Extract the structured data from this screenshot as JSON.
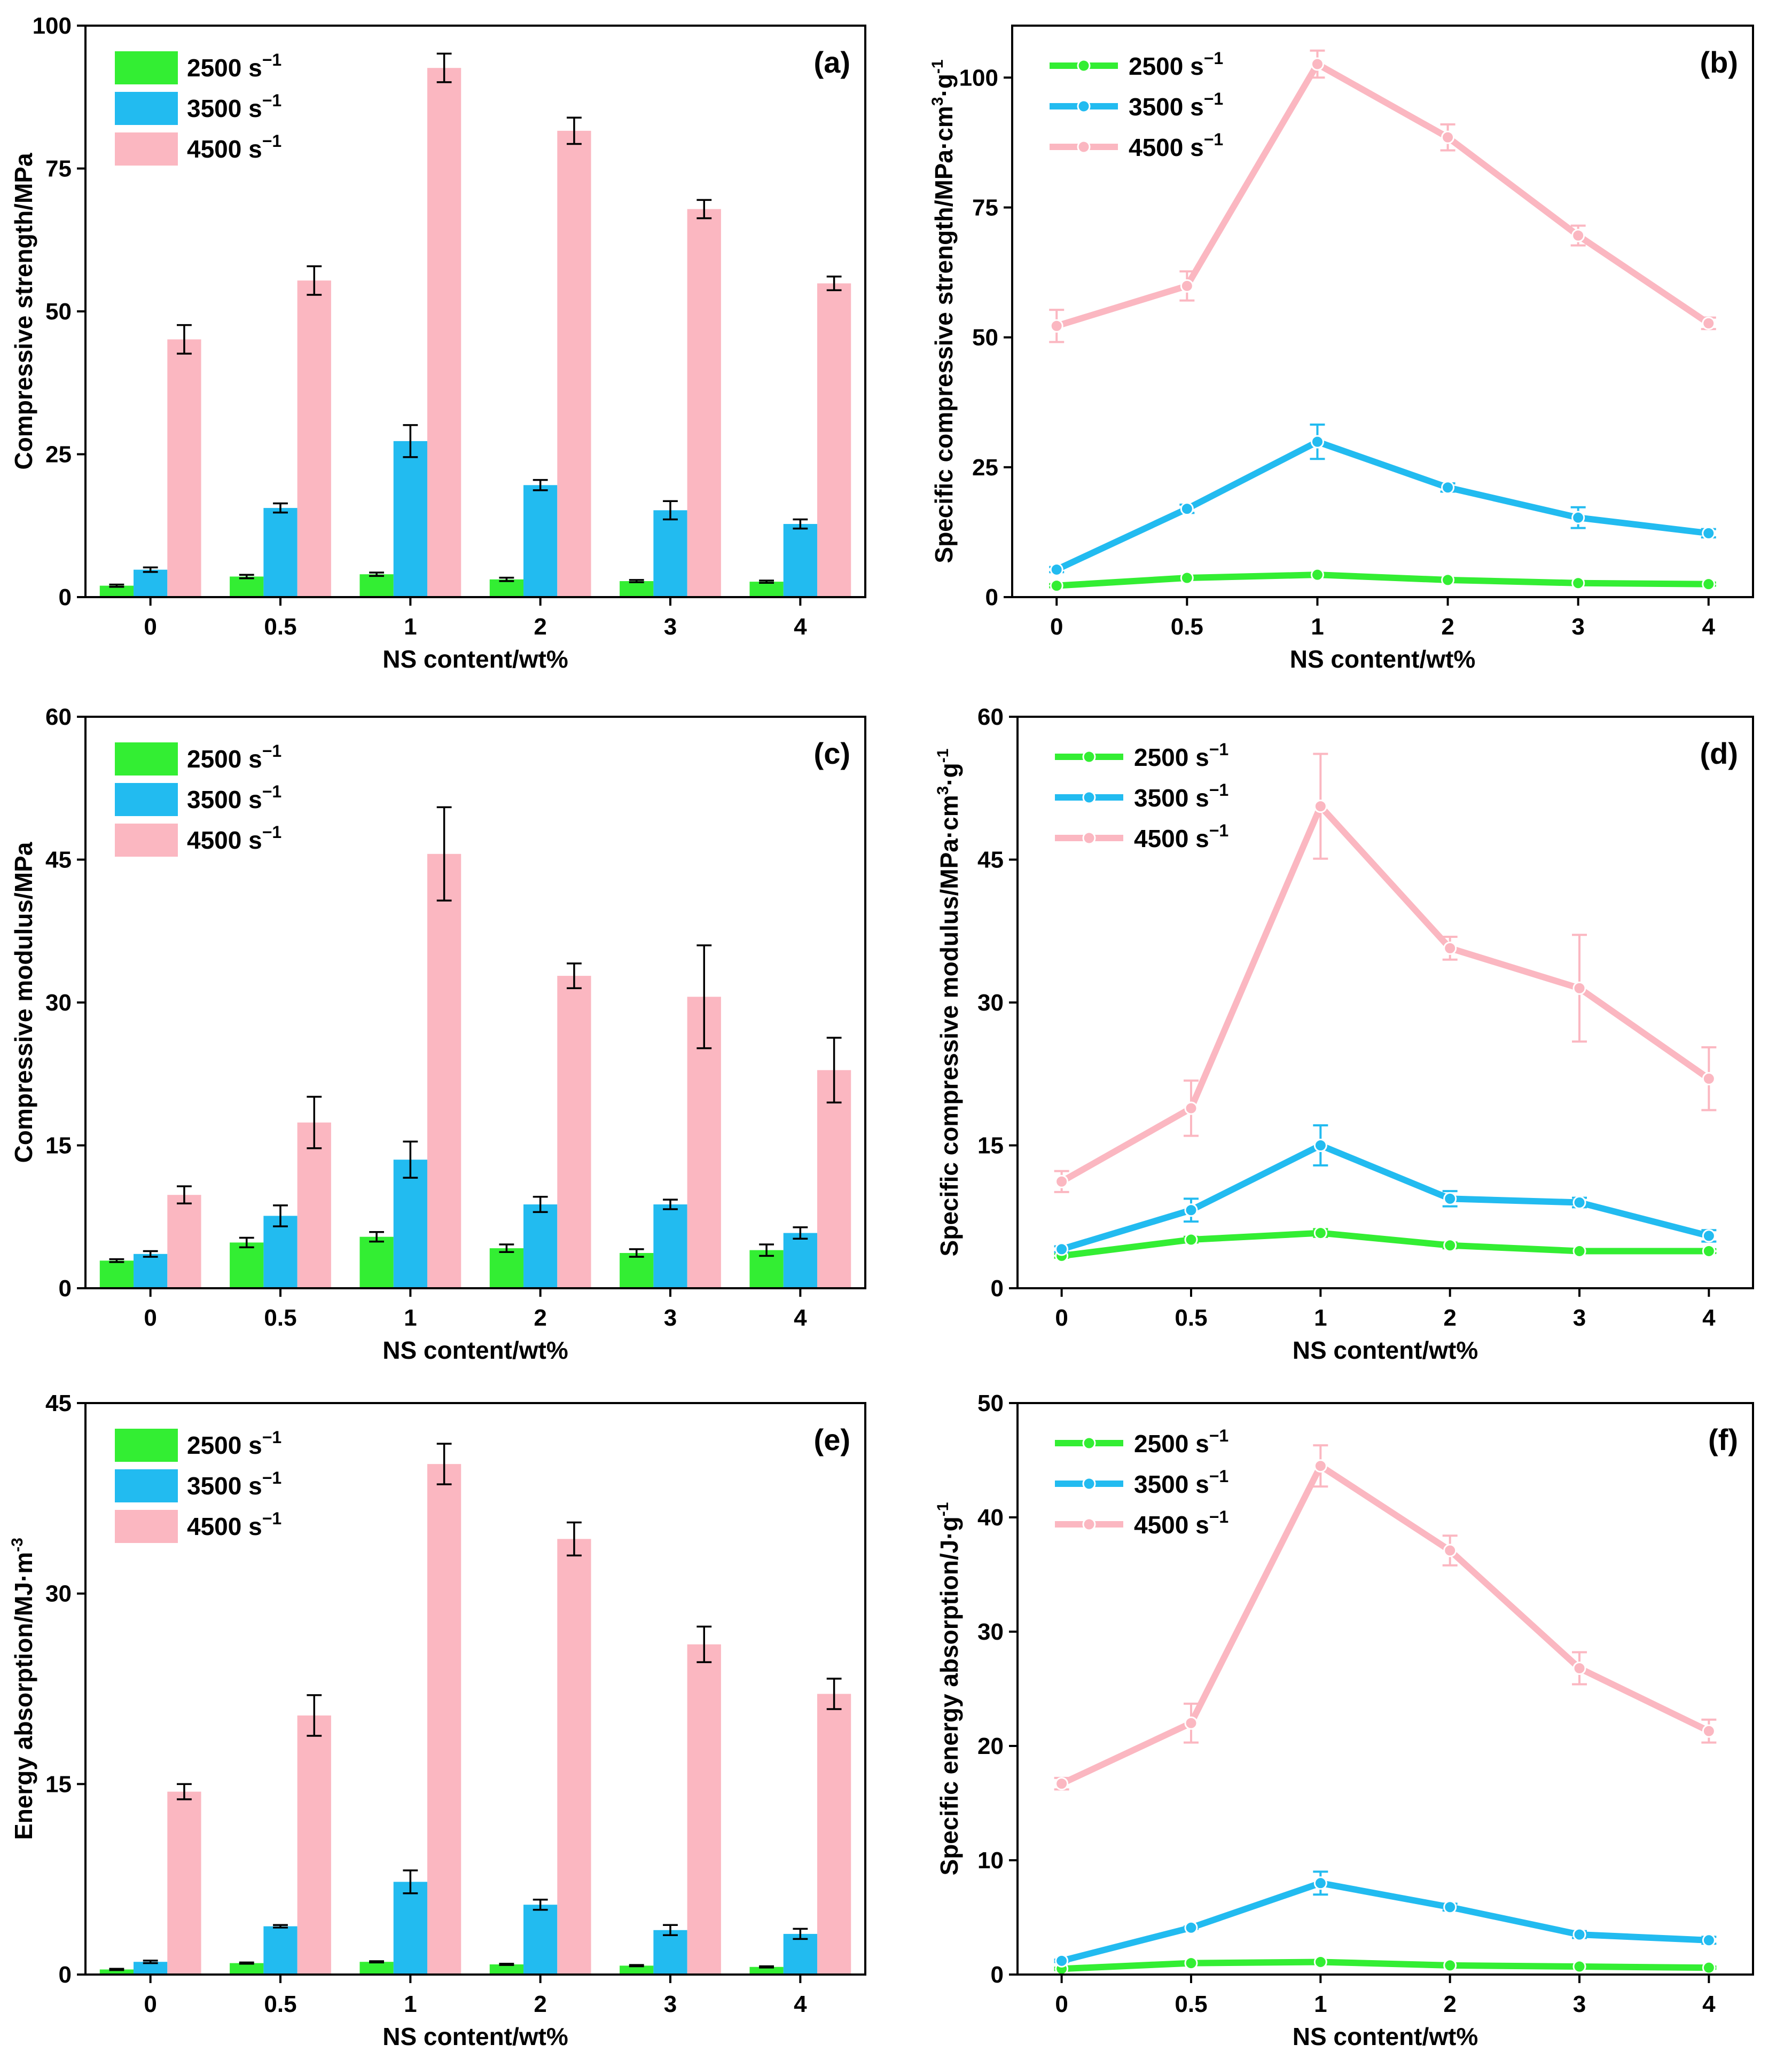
{
  "colors": {
    "rate_2500": "#33ee33",
    "rate_3500": "#22bbf0",
    "rate_4500": "#fbb7c1",
    "axis": "#000000"
  },
  "legend_labels": [
    "2500 s",
    "3500 s",
    "4500 s"
  ],
  "legend_superscript": "−1",
  "chart_data": [
    {
      "panel": "(a)",
      "type": "bar",
      "categories": [
        "0",
        "0.5",
        "1",
        "2",
        "3",
        "4"
      ],
      "xlabel": "NS content/wt%",
      "ylabel": "Compressive strength/MPa",
      "ylim": [
        0,
        100
      ],
      "yticks": [
        0,
        25,
        50,
        75,
        100
      ],
      "legend_position": "top-left",
      "series": [
        {
          "name": "2500 s−1",
          "values": [
            2.0,
            3.6,
            4.0,
            3.1,
            2.8,
            2.7
          ],
          "errors": [
            0.2,
            0.3,
            0.3,
            0.3,
            0.2,
            0.2
          ]
        },
        {
          "name": "3500 s−1",
          "values": [
            4.8,
            15.6,
            27.3,
            19.6,
            15.2,
            12.8
          ],
          "errors": [
            0.4,
            0.8,
            2.8,
            0.9,
            1.6,
            0.8
          ]
        },
        {
          "name": "4500 s−1",
          "values": [
            45.1,
            55.4,
            92.6,
            81.6,
            67.9,
            54.9
          ],
          "errors": [
            2.5,
            2.5,
            2.5,
            2.3,
            1.6,
            1.2
          ]
        }
      ]
    },
    {
      "panel": "(b)",
      "type": "line",
      "categories": [
        "0",
        "0.5",
        "1",
        "2",
        "3",
        "4"
      ],
      "xlabel": "NS content/wt%",
      "ylabel": "Specific compressive strength/MPa·cm·g",
      "ylabel_sup1": "3",
      "ylabel_sup2": "-1",
      "ylim": [
        0,
        110
      ],
      "yticks": [
        0,
        25,
        50,
        75,
        100
      ],
      "legend_position": "top-left",
      "series": [
        {
          "name": "2500 s−1",
          "values": [
            2.2,
            3.7,
            4.3,
            3.3,
            2.7,
            2.5
          ],
          "errors": [
            0.3,
            0.3,
            0.3,
            0.3,
            0.3,
            0.3
          ]
        },
        {
          "name": "3500 s−1",
          "values": [
            5.3,
            17.0,
            29.9,
            21.1,
            15.3,
            12.3
          ],
          "errors": [
            0.5,
            0.8,
            3.3,
            0.8,
            2.0,
            0.8
          ]
        },
        {
          "name": "4500 s−1",
          "values": [
            52.2,
            59.9,
            102.6,
            88.5,
            69.6,
            52.7
          ],
          "errors": [
            3.1,
            2.8,
            2.6,
            2.5,
            1.9,
            1.1
          ]
        }
      ]
    },
    {
      "panel": "(c)",
      "type": "bar",
      "categories": [
        "0",
        "0.5",
        "1",
        "2",
        "3",
        "4"
      ],
      "xlabel": "NS content/wt%",
      "ylabel": "Compressive modulus/MPa",
      "ylim": [
        0,
        60
      ],
      "yticks": [
        0,
        15,
        30,
        45,
        60
      ],
      "legend_position": "top-left",
      "series": [
        {
          "name": "2500 s−1",
          "values": [
            2.9,
            4.8,
            5.4,
            4.2,
            3.7,
            4.0
          ],
          "errors": [
            0.15,
            0.5,
            0.5,
            0.4,
            0.4,
            0.6
          ]
        },
        {
          "name": "3500 s−1",
          "values": [
            3.6,
            7.6,
            13.5,
            8.8,
            8.8,
            5.8
          ],
          "errors": [
            0.3,
            1.1,
            1.9,
            0.8,
            0.5,
            0.6
          ]
        },
        {
          "name": "4500 s−1",
          "values": [
            9.8,
            17.4,
            45.6,
            32.8,
            30.6,
            22.9
          ],
          "errors": [
            0.9,
            2.7,
            4.9,
            1.3,
            5.4,
            3.4
          ]
        }
      ]
    },
    {
      "panel": "(d)",
      "type": "line",
      "categories": [
        "0",
        "0.5",
        "1",
        "2",
        "3",
        "4"
      ],
      "xlabel": "NS content/wt%",
      "ylabel": "Specific compressive modulus/MPa·cm·g",
      "ylabel_sup1": "3",
      "ylabel_sup2": "-1",
      "ylim": [
        0,
        60
      ],
      "yticks": [
        0,
        15,
        30,
        45,
        60
      ],
      "legend_position": "top-left",
      "series": [
        {
          "name": "2500 s−1",
          "values": [
            3.4,
            5.1,
            5.8,
            4.5,
            3.9,
            3.9
          ],
          "errors": [
            0.2,
            0.3,
            0.4,
            0.3,
            0.2,
            0.2
          ]
        },
        {
          "name": "3500 s−1",
          "values": [
            4.1,
            8.2,
            15.0,
            9.4,
            9.0,
            5.5
          ],
          "errors": [
            0.3,
            1.2,
            2.1,
            0.8,
            0.5,
            0.6
          ]
        },
        {
          "name": "4500 s−1",
          "values": [
            11.2,
            18.9,
            50.6,
            35.7,
            31.5,
            22.0
          ],
          "errors": [
            1.1,
            2.9,
            5.5,
            1.2,
            5.6,
            3.3
          ]
        }
      ]
    },
    {
      "panel": "(e)",
      "type": "bar",
      "categories": [
        "0",
        "0.5",
        "1",
        "2",
        "3",
        "4"
      ],
      "xlabel": "NS content/wt%",
      "ylabel": "Energy absorption/MJ·m",
      "ylabel_sup1": "-3",
      "ylim": [
        0,
        45
      ],
      "yticks": [
        0,
        15,
        30,
        45
      ],
      "legend_position": "top-left",
      "series": [
        {
          "name": "2500 s−1",
          "values": [
            0.4,
            0.9,
            1.0,
            0.8,
            0.7,
            0.6
          ],
          "errors": [
            0.05,
            0.05,
            0.05,
            0.05,
            0.05,
            0.05
          ]
        },
        {
          "name": "3500 s−1",
          "values": [
            1.0,
            3.8,
            7.3,
            5.5,
            3.5,
            3.2
          ],
          "errors": [
            0.1,
            0.1,
            0.9,
            0.4,
            0.4,
            0.4
          ]
        },
        {
          "name": "4500 s−1",
          "values": [
            14.4,
            20.4,
            40.2,
            34.3,
            26.0,
            22.1
          ],
          "errors": [
            0.6,
            1.6,
            1.6,
            1.3,
            1.4,
            1.2
          ]
        }
      ]
    },
    {
      "panel": "(f)",
      "type": "line",
      "categories": [
        "0",
        "0.5",
        "1",
        "2",
        "3",
        "4"
      ],
      "xlabel": "NS content/wt%",
      "ylabel": "Specific energy absorption/J·g",
      "ylabel_sup2": "-1",
      "ylim": [
        0,
        50
      ],
      "yticks": [
        0,
        10,
        20,
        30,
        40,
        50
      ],
      "legend_position": "top-left",
      "series": [
        {
          "name": "2500 s−1",
          "values": [
            0.5,
            1.0,
            1.1,
            0.8,
            0.7,
            0.6
          ],
          "errors": [
            0.1,
            0.1,
            0.1,
            0.1,
            0.1,
            0.1
          ]
        },
        {
          "name": "3500 s−1",
          "values": [
            1.2,
            4.1,
            8.0,
            5.9,
            3.5,
            3.0
          ],
          "errors": [
            0.1,
            0.1,
            1.0,
            0.3,
            0.3,
            0.3
          ]
        },
        {
          "name": "4500 s−1",
          "values": [
            16.7,
            22.0,
            44.5,
            37.1,
            26.8,
            21.3
          ],
          "errors": [
            0.5,
            1.7,
            1.8,
            1.3,
            1.4,
            1.0
          ]
        }
      ]
    }
  ]
}
